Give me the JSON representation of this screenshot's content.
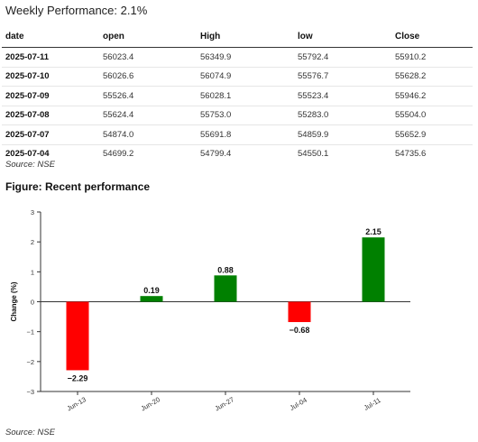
{
  "headline": "Weekly Performance: 2.1%",
  "table": {
    "headers": [
      "date",
      "open",
      "High",
      "low",
      "Close"
    ],
    "rows": [
      [
        "2025-07-11",
        "56023.4",
        "56349.9",
        "55792.4",
        "55910.2"
      ],
      [
        "2025-07-10",
        "56026.6",
        "56074.9",
        "55576.7",
        "55628.2"
      ],
      [
        "2025-07-09",
        "55526.4",
        "56028.1",
        "55523.4",
        "55946.2"
      ],
      [
        "2025-07-08",
        "55624.4",
        "55753.0",
        "55283.0",
        "55504.0"
      ],
      [
        "2025-07-07",
        "54874.0",
        "55691.8",
        "54859.9",
        "55652.9"
      ],
      [
        "2025-07-04",
        "54699.2",
        "54799.4",
        "54550.1",
        "54735.6"
      ]
    ]
  },
  "table_source": "Source: NSE",
  "figure_title": "Figure: Recent performance",
  "chart_source": "Source: NSE",
  "chart_data": {
    "type": "bar",
    "categories": [
      "Jun-13",
      "Jun-20",
      "Jun-27",
      "Jul-04",
      "Jul-11"
    ],
    "values": [
      -2.29,
      0.19,
      0.88,
      -0.68,
      2.15
    ],
    "value_labels": [
      "−2.29",
      "0.19",
      "0.88",
      "−0.68",
      "2.15"
    ],
    "ylabel": "Change (%)",
    "ylim": [
      -3,
      3
    ],
    "yticks": [
      -3,
      -2,
      -1,
      0,
      1,
      2,
      3
    ],
    "ytick_labels": [
      "−3",
      "−2",
      "−1",
      "0",
      "1",
      "2",
      "3"
    ],
    "colors": {
      "positive": "#008000",
      "negative": "#ff0000"
    },
    "grid": false
  }
}
